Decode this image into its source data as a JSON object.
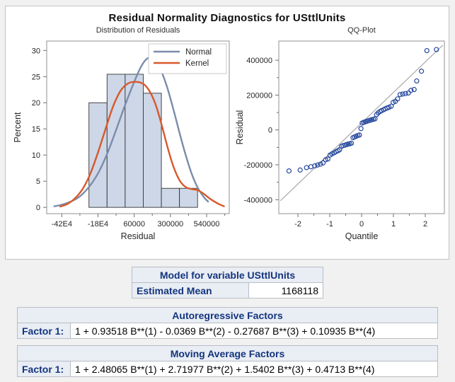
{
  "figure": {
    "title": "Residual Normality Diagnostics for USttlUnits"
  },
  "colors": {
    "page_bg": "#f1f1f1",
    "normal_curve": "#7b8cab",
    "kernel_curve": "#d8582b",
    "bar_fill": "#cdd7e7",
    "bar_stroke": "#333333",
    "qq_point": "#24479d",
    "reference_line": "#a8a8a8",
    "frame": "#909090",
    "tick": "#707070",
    "text": "#262626",
    "table_header_bg": "#e9edf4",
    "table_border": "#b9bdc5",
    "table_header_text": "#13357e"
  },
  "chart_data": [
    {
      "type": "histogram",
      "title": "Distribution of Residuals",
      "xlabel": "Residual",
      "ylabel": "Percent",
      "xlim": [
        -520000,
        690000
      ],
      "ylim": [
        -1.2,
        31.8
      ],
      "grid": false,
      "legend_position": "top-right-inside",
      "bin_edges": [
        -240000,
        -120000,
        0,
        120000,
        240000,
        360000,
        480000
      ],
      "bin_percents": [
        20.0,
        25.45,
        25.45,
        21.82,
        3.64,
        3.64
      ],
      "x_ticks": [
        {
          "v": -420000,
          "t": "-42E4"
        },
        {
          "v": -180000,
          "t": "-18E4"
        },
        {
          "v": 60000,
          "t": "60000"
        },
        {
          "v": 300000,
          "t": "300000"
        },
        {
          "v": 540000,
          "t": "540000"
        }
      ],
      "x_minor_ticks": [
        -300000,
        -60000,
        180000,
        420000,
        660000
      ],
      "y_ticks": [
        0,
        5,
        10,
        15,
        20,
        25,
        30
      ],
      "series": [
        {
          "name": "Normal",
          "color_key": "normal_curve",
          "points": [
            [
              -470000,
              0.2
            ],
            [
              -420000,
              0.5
            ],
            [
              -360000,
              1.1
            ],
            [
              -300000,
              2.1
            ],
            [
              -240000,
              3.9
            ],
            [
              -180000,
              6.5
            ],
            [
              -120000,
              10.2
            ],
            [
              -60000,
              14.8
            ],
            [
              0,
              19.6
            ],
            [
              60000,
              24.0
            ],
            [
              100000,
              26.6
            ],
            [
              130000,
              28.0
            ],
            [
              160000,
              28.6
            ],
            [
              200000,
              28.0
            ],
            [
              240000,
              26.0
            ],
            [
              280000,
              22.8
            ],
            [
              320000,
              18.7
            ],
            [
              360000,
              14.3
            ],
            [
              400000,
              10.1
            ],
            [
              440000,
              6.5
            ],
            [
              480000,
              3.8
            ],
            [
              520000,
              2.0
            ],
            [
              550000,
              1.1
            ]
          ]
        },
        {
          "name": "Kernel",
          "color_key": "kernel_curve",
          "points": [
            [
              -430000,
              0.15
            ],
            [
              -380000,
              0.7
            ],
            [
              -330000,
              1.8
            ],
            [
              -280000,
              3.6
            ],
            [
              -230000,
              6.5
            ],
            [
              -180000,
              10.5
            ],
            [
              -130000,
              15.0
            ],
            [
              -80000,
              19.3
            ],
            [
              -30000,
              22.3
            ],
            [
              20000,
              23.7
            ],
            [
              70000,
              24.0
            ],
            [
              120000,
              23.6
            ],
            [
              160000,
              22.3
            ],
            [
              200000,
              19.8
            ],
            [
              240000,
              16.0
            ],
            [
              280000,
              11.6
            ],
            [
              320000,
              7.8
            ],
            [
              360000,
              5.2
            ],
            [
              400000,
              3.9
            ],
            [
              440000,
              3.5
            ],
            [
              480000,
              3.3
            ],
            [
              520000,
              2.6
            ],
            [
              560000,
              1.7
            ],
            [
              610000,
              0.8
            ],
            [
              655000,
              0.2
            ]
          ]
        }
      ]
    },
    {
      "type": "scatter",
      "title": "QQ-Plot",
      "xlabel": "Quantile",
      "ylabel": "Residual",
      "xlim": [
        -2.6,
        2.6
      ],
      "ylim": [
        -480000,
        510000
      ],
      "grid": false,
      "x_ticks": [
        -2,
        -1,
        0,
        1,
        2
      ],
      "x_minor_ticks": [
        -1.5,
        -0.5,
        0.5,
        1.5
      ],
      "y_ticks": [
        400000,
        200000,
        0,
        -200000,
        -400000
      ],
      "y_minor_ticks": [
        300000,
        100000,
        -100000,
        -300000
      ],
      "refline": {
        "intercept": 40000,
        "slope": 175000
      },
      "points": [
        [
          -2.28,
          -235000
        ],
        [
          -1.93,
          -230000
        ],
        [
          -1.73,
          -216000
        ],
        [
          -1.59,
          -211000
        ],
        [
          -1.47,
          -206000
        ],
        [
          -1.38,
          -201000
        ],
        [
          -1.29,
          -196000
        ],
        [
          -1.21,
          -189000
        ],
        [
          -1.13,
          -171000
        ],
        [
          -1.06,
          -167000
        ],
        [
          -0.99,
          -144000
        ],
        [
          -0.93,
          -137000
        ],
        [
          -0.86,
          -131000
        ],
        [
          -0.8,
          -124000
        ],
        [
          -0.74,
          -119000
        ],
        [
          -0.69,
          -113000
        ],
        [
          -0.63,
          -94000
        ],
        [
          -0.58,
          -90000
        ],
        [
          -0.52,
          -87000
        ],
        [
          -0.47,
          -84000
        ],
        [
          -0.42,
          -81000
        ],
        [
          -0.37,
          -79000
        ],
        [
          -0.32,
          -76000
        ],
        [
          -0.27,
          -44000
        ],
        [
          -0.22,
          -40000
        ],
        [
          -0.17,
          -36000
        ],
        [
          -0.12,
          -32000
        ],
        [
          -0.07,
          -29000
        ],
        [
          -0.02,
          8000
        ],
        [
          0.02,
          40000
        ],
        [
          0.07,
          44000
        ],
        [
          0.12,
          47000
        ],
        [
          0.17,
          50000
        ],
        [
          0.22,
          53000
        ],
        [
          0.27,
          56000
        ],
        [
          0.32,
          59000
        ],
        [
          0.37,
          61000
        ],
        [
          0.42,
          64000
        ],
        [
          0.47,
          88000
        ],
        [
          0.52,
          98000
        ],
        [
          0.58,
          106000
        ],
        [
          0.63,
          111000
        ],
        [
          0.69,
          116000
        ],
        [
          0.74,
          121000
        ],
        [
          0.8,
          126000
        ],
        [
          0.86,
          130000
        ],
        [
          0.93,
          136000
        ],
        [
          0.99,
          158000
        ],
        [
          1.06,
          164000
        ],
        [
          1.13,
          178000
        ],
        [
          1.21,
          203000
        ],
        [
          1.29,
          206000
        ],
        [
          1.38,
          209000
        ],
        [
          1.47,
          212000
        ],
        [
          1.55,
          227000
        ],
        [
          1.65,
          232000
        ],
        [
          1.73,
          281000
        ],
        [
          1.88,
          337000
        ],
        [
          2.05,
          455000
        ],
        [
          2.35,
          461000
        ]
      ]
    }
  ],
  "tables": {
    "model": {
      "title": "Model for variable USttlUnits",
      "row_label": "Estimated Mean",
      "row_value": "1168118"
    },
    "autoregressive": {
      "title": "Autoregressive Factors",
      "row_label": "Factor 1:",
      "row_value": "1 + 0.93518 B**(1) - 0.0369 B**(2) - 0.27687 B**(3) + 0.10935 B**(4)"
    },
    "moving_average": {
      "title": "Moving Average Factors",
      "row_label": "Factor 1:",
      "row_value": "1 + 2.48065 B**(1) + 2.71977 B**(2) + 1.5402 B**(3) + 0.4713 B**(4)"
    }
  }
}
